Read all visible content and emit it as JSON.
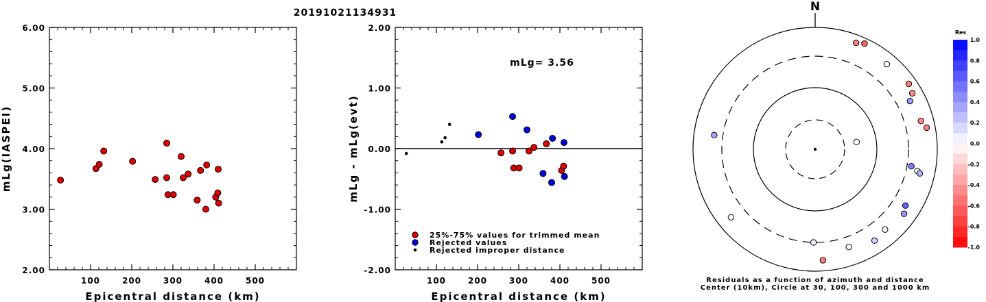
{
  "title": "20191021134931",
  "chart_data": [
    {
      "type": "scatter",
      "xlabel": "Epicentral distance (km)",
      "ylabel": "mLg(IASPEI)",
      "xlim": [
        0,
        600
      ],
      "ylim": [
        2.0,
        6.0
      ],
      "x_ticks": [
        "100",
        "200",
        "300",
        "400",
        "500"
      ],
      "y_ticks": [
        "6.00",
        "5.00",
        "4.00",
        "3.00",
        "2.00"
      ],
      "points": [
        {
          "x": 27,
          "y": 3.48
        },
        {
          "x": 113,
          "y": 3.67
        },
        {
          "x": 121,
          "y": 3.74
        },
        {
          "x": 132,
          "y": 3.96
        },
        {
          "x": 202,
          "y": 3.79
        },
        {
          "x": 257,
          "y": 3.49
        },
        {
          "x": 285,
          "y": 4.09
        },
        {
          "x": 285,
          "y": 3.52
        },
        {
          "x": 288,
          "y": 3.24
        },
        {
          "x": 301,
          "y": 3.24
        },
        {
          "x": 320,
          "y": 3.87
        },
        {
          "x": 325,
          "y": 3.52
        },
        {
          "x": 337,
          "y": 3.58
        },
        {
          "x": 359,
          "y": 3.15
        },
        {
          "x": 367,
          "y": 3.64
        },
        {
          "x": 380,
          "y": 3.0
        },
        {
          "x": 382,
          "y": 3.73
        },
        {
          "x": 404,
          "y": 3.2
        },
        {
          "x": 409,
          "y": 3.27
        },
        {
          "x": 410,
          "y": 3.66
        },
        {
          "x": 411,
          "y": 3.1
        }
      ]
    },
    {
      "type": "scatter",
      "xlabel": "Epicentral distance (km)",
      "ylabel": "mLg - mLg(evt)",
      "annotation": "mLg= 3.56",
      "xlim": [
        0,
        600
      ],
      "ylim": [
        -2.0,
        2.0
      ],
      "x_ticks": [
        "100",
        "200",
        "300",
        "400",
        "500"
      ],
      "y_ticks": [
        "2.00",
        "1.00",
        "0.00",
        "-1.00",
        "-2.00"
      ],
      "legend": [
        "25%-75% values for trimmed mean",
        "Rejected values",
        "Rejected improper distance"
      ],
      "legend_colors": [
        "#dd0000",
        "#0000dd",
        "#000000"
      ],
      "series": [
        {
          "name": "25%-75% values for trimmed mean",
          "points": [
            {
              "x": 257,
              "y": -0.07
            },
            {
              "x": 285,
              "y": -0.04
            },
            {
              "x": 288,
              "y": -0.32
            },
            {
              "x": 301,
              "y": -0.32
            },
            {
              "x": 325,
              "y": -0.04
            },
            {
              "x": 337,
              "y": 0.02
            },
            {
              "x": 367,
              "y": 0.08
            },
            {
              "x": 404,
              "y": -0.36
            },
            {
              "x": 409,
              "y": -0.29
            }
          ]
        },
        {
          "name": "Rejected values",
          "points": [
            {
              "x": 202,
              "y": 0.23
            },
            {
              "x": 285,
              "y": 0.53
            },
            {
              "x": 320,
              "y": 0.31
            },
            {
              "x": 359,
              "y": -0.41
            },
            {
              "x": 380,
              "y": -0.56
            },
            {
              "x": 382,
              "y": 0.17
            },
            {
              "x": 410,
              "y": 0.1
            },
            {
              "x": 411,
              "y": -0.46
            }
          ]
        },
        {
          "name": "Rejected improper distance",
          "points": [
            {
              "x": 27,
              "y": -0.08
            },
            {
              "x": 113,
              "y": 0.11
            },
            {
              "x": 121,
              "y": 0.18
            },
            {
              "x": 132,
              "y": 0.4
            }
          ]
        }
      ]
    },
    {
      "type": "polar",
      "north_label": "N",
      "caption_line1": "Residuals as a function of azimuth and distance",
      "caption_line2": "Center (10km), Circle at 30, 100, 300 and 1000 km",
      "colorbar_title": "Res",
      "colorbar_labels": [
        "1.0",
        "0.8",
        "0.6",
        "0.4",
        "0.2",
        "0.0",
        "-0.2",
        "-0.4",
        "-0.6",
        "-0.8",
        "-1.0"
      ],
      "stations": [
        {
          "az": 21,
          "dist": 720,
          "res": -0.5
        },
        {
          "az": 25,
          "dist": 800,
          "res": -0.6
        },
        {
          "az": 40,
          "dist": 640,
          "res": 0.0
        },
        {
          "az": 55,
          "dist": 720,
          "res": -0.5
        },
        {
          "az": 60,
          "dist": 660,
          "res": -0.45
        },
        {
          "az": 63,
          "dist": 520,
          "res": 0.4
        },
        {
          "az": 75,
          "dist": 590,
          "res": -0.45
        },
        {
          "az": 79,
          "dist": 700,
          "res": -0.5
        },
        {
          "az": 80,
          "dist": 48,
          "res": 0.0
        },
        {
          "az": 100,
          "dist": 360,
          "res": 0.5
        },
        {
          "az": 102,
          "dist": 480,
          "res": 0.0
        },
        {
          "az": 103,
          "dist": 540,
          "res": 0.3
        },
        {
          "az": 122,
          "dist": 520,
          "res": 0.6
        },
        {
          "az": 126,
          "dist": 600,
          "res": 0.4
        },
        {
          "az": 139,
          "dist": 520,
          "res": 0.0
        },
        {
          "az": 147,
          "dist": 580,
          "res": 0.2
        },
        {
          "az": 161,
          "dist": 460,
          "res": 0.0
        },
        {
          "az": 176,
          "dist": 640,
          "res": -0.5
        },
        {
          "az": 181,
          "dist": 300,
          "res": 0.05
        },
        {
          "az": 231,
          "dist": 560,
          "res": 0.0
        },
        {
          "az": 278,
          "dist": 430,
          "res": 0.35
        }
      ]
    }
  ]
}
